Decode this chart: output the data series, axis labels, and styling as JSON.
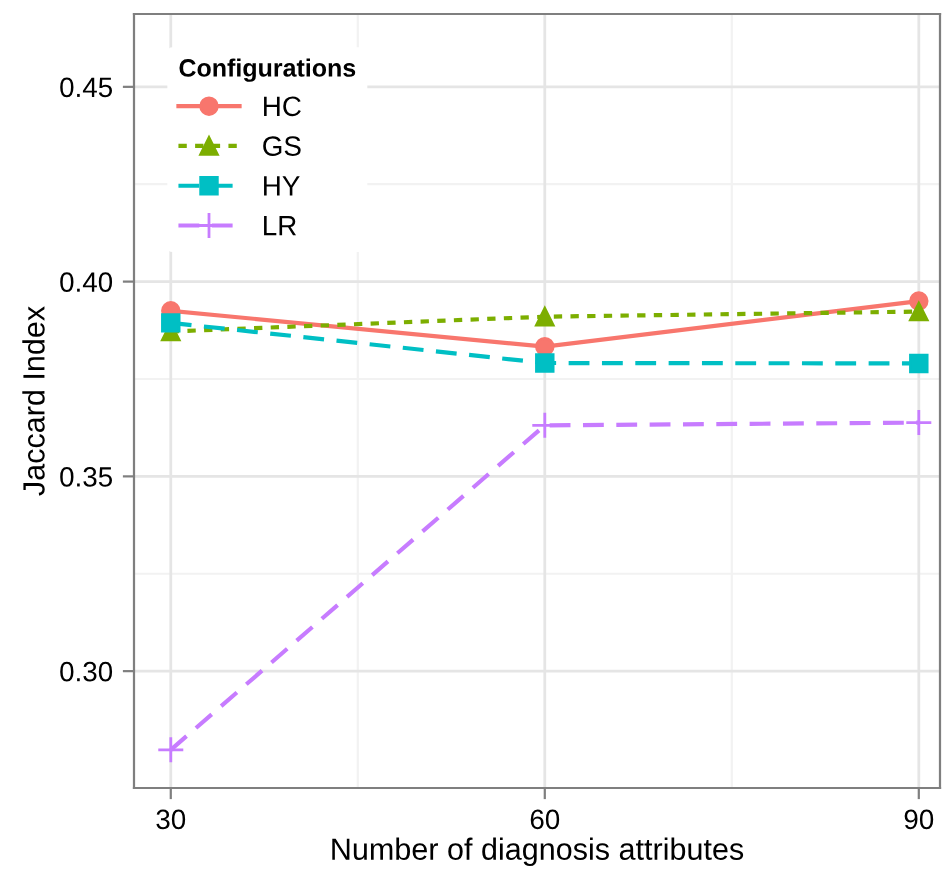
{
  "chart_data": {
    "type": "line",
    "xlabel": "Number of diagnosis attributes",
    "ylabel": "Jaccard Index",
    "legend_title": "Configurations",
    "x": [
      30,
      60,
      90
    ],
    "series": [
      {
        "name": "HC",
        "color": "#f8766d",
        "values": [
          0.3925,
          0.3833,
          0.395
        ],
        "marker": "circle",
        "line_style": "solid"
      },
      {
        "name": "GS",
        "color": "#7cae00",
        "values": [
          0.3872,
          0.391,
          0.3923
        ],
        "marker": "triangle",
        "line_style": "dotted"
      },
      {
        "name": "HY",
        "color": "#00bfc4",
        "values": [
          0.3894,
          0.3791,
          0.379
        ],
        "marker": "square",
        "line_style": "dashed"
      },
      {
        "name": "LR",
        "color": "#c77cff",
        "values": [
          0.2798,
          0.3631,
          0.3638
        ],
        "marker": "cross",
        "line_style": "dashed"
      }
    ],
    "xlim": [
      27.05,
      91.7
    ],
    "ylim": [
      0.27,
      0.4687
    ],
    "xticks": [
      30,
      60,
      90
    ],
    "yticks": [
      {
        "value": 0.3,
        "label": "0.30"
      },
      {
        "value": 0.35,
        "label": "0.35"
      },
      {
        "value": 0.4,
        "label": "0.40"
      },
      {
        "value": 0.45,
        "label": "0.45"
      }
    ],
    "grid": true,
    "legend": "top left"
  }
}
